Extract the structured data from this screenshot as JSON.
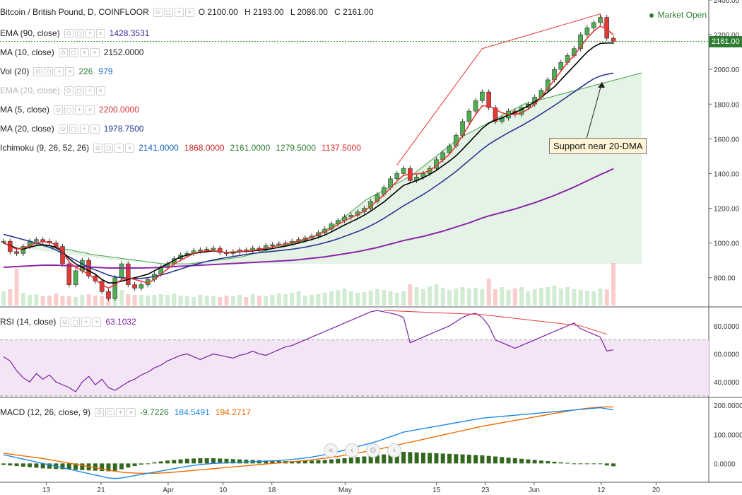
{
  "header": {
    "symbol": "Bitcoin / British Pound, D, COINFLOOR",
    "ohlc": {
      "o": "O 2100.00",
      "h": "H 2193.00",
      "l": "L 2086.00",
      "c": "C 2161.00"
    },
    "market_status": "Market Open"
  },
  "indicators": [
    {
      "name": "EMA (90, close)",
      "values": [
        "1428.3531"
      ],
      "colors": [
        "#4527a0"
      ],
      "faded": false
    },
    {
      "name": "MA (10, close)",
      "values": [
        "2152.0000"
      ],
      "colors": [
        "#222222"
      ],
      "faded": false
    },
    {
      "name": "Vol (20)",
      "values": [
        "226",
        "979"
      ],
      "colors": [
        "#2e7d32",
        "#1565c0"
      ],
      "faded": false
    },
    {
      "name": "EMA (20, close)",
      "values": [],
      "colors": [],
      "faded": true
    },
    {
      "name": "MA (5, close)",
      "values": [
        "2200.0000"
      ],
      "colors": [
        "#d32f2f"
      ],
      "faded": false
    },
    {
      "name": "MA (20, close)",
      "values": [
        "1978.7500"
      ],
      "colors": [
        "#283593"
      ],
      "faded": false
    },
    {
      "name": "Ichimoku (9, 26, 52, 26)",
      "values": [
        "2141.0000",
        "1868.0000",
        "2161.0000",
        "1279.5000",
        "1137.5000"
      ],
      "colors": [
        "#1565c0",
        "#c62828",
        "#2e7d32",
        "#2e7d32",
        "#d32f2f"
      ],
      "faded": false
    }
  ],
  "rsi_legend": {
    "name": "RSI (14, close)",
    "value": "63.1032"
  },
  "macd_legend": {
    "name": "MACD (12, 26, close, 9)",
    "values": [
      "-9.7226",
      "184.5491",
      "194.2717"
    ],
    "colors": [
      "#2e7d32",
      "#1e88e5",
      "#ef6c00"
    ]
  },
  "annotation": "Support near 20-DMA",
  "price_badge": "2161.00",
  "colors": {
    "up": "#4caf50",
    "down": "#e53935",
    "ma10": "#000000",
    "ma5": "#e53935",
    "ma20": "#283593",
    "ema90": "#8e24aa",
    "rsi": "#7b1fa2",
    "macd": "#1e88e5",
    "signal": "#ef6c00",
    "hist": "#33691e"
  },
  "chart_data": {
    "type": "candlestick",
    "title": "Bitcoin / British Pound, D, COINFLOOR",
    "x_ticks": [
      "13",
      "21",
      "Apr",
      "10",
      "18",
      "May",
      "15",
      "23",
      "Jun",
      "12",
      "20"
    ],
    "price_axis": {
      "ticks": [
        "800.00",
        "1000.00",
        "1200.00",
        "1400.00",
        "1600.00",
        "1800.00",
        "2000.00",
        "2200.00",
        "2400.00"
      ],
      "range": [
        640,
        2400
      ]
    },
    "rsi_axis": {
      "ticks": [
        "40.0000",
        "60.0000",
        "80.0000"
      ],
      "range": [
        30,
        92
      ],
      "band": [
        30,
        70
      ]
    },
    "macd_axis": {
      "ticks": [
        "0.0000",
        "100.0000",
        "200.0000"
      ],
      "range": [
        -60,
        220
      ]
    },
    "closes": [
      1010,
      950,
      940,
      980,
      1010,
      1020,
      1010,
      1000,
      980,
      880,
      760,
      840,
      900,
      810,
      780,
      720,
      680,
      800,
      880,
      760,
      740,
      760,
      790,
      820,
      860,
      880,
      910,
      930,
      940,
      955,
      960,
      965,
      970,
      945,
      940,
      950,
      960,
      955,
      970,
      965,
      985,
      990,
      995,
      1000,
      1010,
      1020,
      1030,
      1040,
      1060,
      1080,
      1110,
      1130,
      1150,
      1160,
      1180,
      1200,
      1240,
      1280,
      1320,
      1370,
      1400,
      1430,
      1360,
      1380,
      1400,
      1430,
      1480,
      1520,
      1560,
      1620,
      1700,
      1760,
      1820,
      1870,
      1780,
      1700,
      1720,
      1760,
      1740,
      1780,
      1800,
      1840,
      1880,
      1940,
      2000,
      2040,
      2080,
      2120,
      2200,
      2240,
      2270,
      2300,
      2180,
      2161
    ],
    "volume": [
      200,
      230,
      520,
      180,
      150,
      160,
      130,
      140,
      170,
      130,
      130,
      120,
      150,
      160,
      140,
      130,
      120,
      180,
      220,
      160,
      150,
      150,
      140,
      150,
      160,
      150,
      170,
      140,
      130,
      120,
      150,
      140,
      130,
      120,
      140,
      130,
      150,
      120,
      160,
      140,
      130,
      150,
      170,
      160,
      180,
      200,
      140,
      150,
      160,
      180,
      200,
      220,
      240,
      200,
      180,
      190,
      210,
      230,
      220,
      200,
      180,
      200,
      300,
      260,
      230,
      270,
      300,
      250,
      220,
      240,
      260,
      240,
      250,
      230,
      380,
      230,
      260,
      220,
      240,
      260,
      200,
      230,
      250,
      260,
      280,
      240,
      260,
      230,
      220,
      210,
      200,
      240,
      226,
      979
    ],
    "ma10": [
      1000,
      985,
      970,
      965,
      975,
      985,
      990,
      985,
      975,
      950,
      910,
      880,
      860,
      840,
      820,
      790,
      770,
      770,
      780,
      790,
      800,
      810,
      820,
      840,
      860,
      880,
      900,
      920,
      930,
      940,
      945,
      950,
      955,
      950,
      945,
      945,
      950,
      952,
      955,
      958,
      962,
      968,
      975,
      982,
      990,
      1000,
      1010,
      1020,
      1032,
      1046,
      1064,
      1084,
      1104,
      1122,
      1140,
      1160,
      1184,
      1210,
      1236,
      1268,
      1300,
      1332,
      1346,
      1360,
      1376,
      1396,
      1418,
      1446,
      1472,
      1502,
      1540,
      1580,
      1620,
      1660,
      1690,
      1708,
      1720,
      1738,
      1752,
      1770,
      1790,
      1812,
      1840,
      1870,
      1900,
      1940,
      1980,
      2020,
      2060,
      2100,
      2130,
      2150,
      2152,
      2152
    ],
    "ma5": [
      1005,
      980,
      965,
      970,
      985,
      1000,
      1008,
      1005,
      990,
      950,
      890,
      860,
      840,
      820,
      790,
      760,
      740,
      760,
      790,
      800,
      790,
      780,
      770,
      790,
      820,
      850,
      880,
      900,
      920,
      940,
      950,
      955,
      958,
      950,
      945,
      948,
      952,
      954,
      958,
      962,
      970,
      978,
      986,
      994,
      1002,
      1012,
      1022,
      1034,
      1048,
      1064,
      1084,
      1106,
      1128,
      1146,
      1164,
      1184,
      1212,
      1244,
      1278,
      1316,
      1356,
      1390,
      1396,
      1398,
      1404,
      1418,
      1444,
      1478,
      1512,
      1560,
      1620,
      1680,
      1740,
      1790,
      1790,
      1770,
      1750,
      1740,
      1740,
      1750,
      1770,
      1800,
      1840,
      1890,
      1940,
      1990,
      2040,
      2080,
      2130,
      2180,
      2220,
      2250,
      2230,
      2200
    ],
    "ma20": [
      1050,
      1040,
      1030,
      1020,
      1010,
      1000,
      990,
      975,
      960,
      940,
      920,
      900,
      880,
      860,
      845,
      830,
      815,
      805,
      800,
      798,
      796,
      796,
      800,
      808,
      816,
      826,
      838,
      850,
      862,
      874,
      884,
      894,
      902,
      910,
      916,
      922,
      928,
      934,
      940,
      944,
      948,
      952,
      956,
      960,
      964,
      970,
      976,
      984,
      992,
      1002,
      1012,
      1024,
      1038,
      1052,
      1066,
      1082,
      1100,
      1120,
      1142,
      1166,
      1190,
      1214,
      1236,
      1258,
      1280,
      1304,
      1330,
      1356,
      1384,
      1412,
      1444,
      1476,
      1508,
      1540,
      1568,
      1592,
      1614,
      1636,
      1656,
      1676,
      1698,
      1720,
      1744,
      1768,
      1792,
      1818,
      1844,
      1870,
      1896,
      1922,
      1946,
      1962,
      1972,
      1979
    ],
    "ema90": [
      860,
      862,
      864,
      866,
      868,
      870,
      872,
      872,
      872,
      870,
      868,
      866,
      864,
      862,
      860,
      858,
      856,
      856,
      856,
      856,
      856,
      856,
      857,
      858,
      860,
      862,
      864,
      866,
      868,
      870,
      872,
      874,
      876,
      878,
      880,
      882,
      884,
      886,
      888,
      890,
      892,
      894,
      896,
      898,
      900,
      904,
      908,
      912,
      916,
      920,
      926,
      932,
      938,
      944,
      950,
      958,
      966,
      974,
      984,
      994,
      1004,
      1014,
      1022,
      1030,
      1038,
      1048,
      1058,
      1068,
      1080,
      1092,
      1104,
      1116,
      1130,
      1144,
      1156,
      1166,
      1176,
      1186,
      1196,
      1208,
      1220,
      1232,
      1246,
      1260,
      1274,
      1290,
      1306,
      1322,
      1340,
      1358,
      1376,
      1394,
      1410,
      1428
    ],
    "rsi": [
      58,
      55,
      48,
      43,
      40,
      46,
      42,
      45,
      40,
      38,
      36,
      33,
      40,
      44,
      38,
      42,
      36,
      34,
      37,
      40,
      42,
      45,
      47,
      50,
      52,
      55,
      57,
      59,
      60,
      58,
      56,
      58,
      60,
      59,
      58,
      57,
      59,
      60,
      62,
      60,
      59,
      61,
      63,
      65,
      66,
      68,
      70,
      72,
      74,
      76,
      78,
      80,
      82,
      84,
      86,
      88,
      90,
      91,
      90,
      89,
      88,
      86,
      68,
      70,
      72,
      74,
      76,
      78,
      80,
      83,
      86,
      88,
      89,
      86,
      80,
      70,
      68,
      66,
      64,
      66,
      68,
      70,
      72,
      74,
      76,
      78,
      80,
      82,
      78,
      76,
      74,
      72,
      62,
      63
    ],
    "macd": [
      30,
      25,
      20,
      15,
      10,
      5,
      0,
      -5,
      -10,
      -15,
      -20,
      -25,
      -30,
      -35,
      -40,
      -45,
      -50,
      -52,
      -50,
      -46,
      -42,
      -38,
      -34,
      -30,
      -26,
      -22,
      -18,
      -14,
      -10,
      -7,
      -4,
      -2,
      0,
      1,
      2,
      3,
      4,
      5,
      6,
      7,
      8,
      9,
      10,
      12,
      14,
      16,
      19,
      22,
      26,
      30,
      35,
      40,
      46,
      52,
      58,
      64,
      70,
      76,
      84,
      92,
      100,
      108,
      112,
      116,
      120,
      124,
      128,
      132,
      136,
      140,
      144,
      148,
      152,
      156,
      158,
      160,
      162,
      164,
      166,
      168,
      170,
      172,
      174,
      176,
      178,
      180,
      182,
      184,
      186,
      188,
      190,
      192,
      188,
      184.5
    ],
    "signal": [
      35,
      32,
      29,
      26,
      23,
      20,
      17,
      13,
      9,
      5,
      1,
      -3,
      -7,
      -11,
      -15,
      -19,
      -23,
      -27,
      -30,
      -32,
      -33,
      -34,
      -34,
      -34,
      -33,
      -32,
      -30,
      -28,
      -26,
      -24,
      -22,
      -20,
      -18,
      -16,
      -14,
      -12,
      -10,
      -8,
      -6,
      -4,
      -2,
      0,
      2,
      4,
      6,
      8,
      10,
      12,
      15,
      18,
      21,
      24,
      28,
      32,
      36,
      40,
      44,
      48,
      53,
      58,
      63,
      68,
      73,
      78,
      83,
      88,
      93,
      98,
      103,
      108,
      113,
      118,
      123,
      128,
      132,
      136,
      140,
      144,
      148,
      152,
      156,
      160,
      164,
      168,
      172,
      176,
      180,
      184,
      187,
      190,
      192,
      194,
      195,
      194.3
    ],
    "ichimoku_span_a": [
      1000,
      990,
      980,
      975,
      970,
      965,
      960,
      950,
      945,
      935,
      930,
      925,
      920,
      915,
      910,
      905,
      900,
      895,
      890,
      885,
      880,
      880,
      880,
      880,
      880,
      885,
      890,
      895,
      900,
      905,
      910,
      915,
      920,
      930,
      940,
      950,
      960,
      970,
      980,
      990,
      1000,
      1010,
      1020,
      1040,
      1060,
      1080,
      1100,
      1130,
      1160,
      1190,
      1220,
      1250,
      1270,
      1290,
      1310,
      1330,
      1350,
      1370,
      1390,
      1420,
      1450,
      1480,
      1510,
      1540,
      1570,
      1600,
      1620,
      1640,
      1660,
      1680,
      1700,
      1720,
      1740,
      1760,
      1780,
      1800,
      1810,
      1820,
      1830,
      1840,
      1850,
      1860,
      1870,
      1880,
      1890,
      1900,
      1910,
      1920,
      1930,
      1940,
      1950,
      1960,
      1970,
      1980
    ],
    "ichimoku_span_b": [
      960,
      960,
      950,
      950,
      940,
      940,
      930,
      930,
      920,
      920,
      910,
      910,
      900,
      900,
      895,
      895,
      890,
      890,
      885,
      885,
      880,
      880,
      880,
      880,
      880,
      880,
      880,
      880,
      880,
      880,
      880,
      880,
      880,
      880,
      880,
      880,
      880,
      880,
      880,
      880,
      880,
      880,
      880,
      880,
      880,
      880,
      880,
      880,
      880,
      880,
      880,
      880,
      880,
      880,
      880,
      880,
      880,
      880,
      880,
      880,
      880,
      880,
      880,
      880,
      880,
      880,
      880,
      880,
      880,
      880,
      880,
      880,
      880,
      880,
      880,
      880,
      880,
      880,
      880,
      880,
      880,
      880,
      880,
      880,
      880,
      880,
      880,
      880,
      880,
      880,
      880,
      880,
      880,
      880
    ]
  }
}
